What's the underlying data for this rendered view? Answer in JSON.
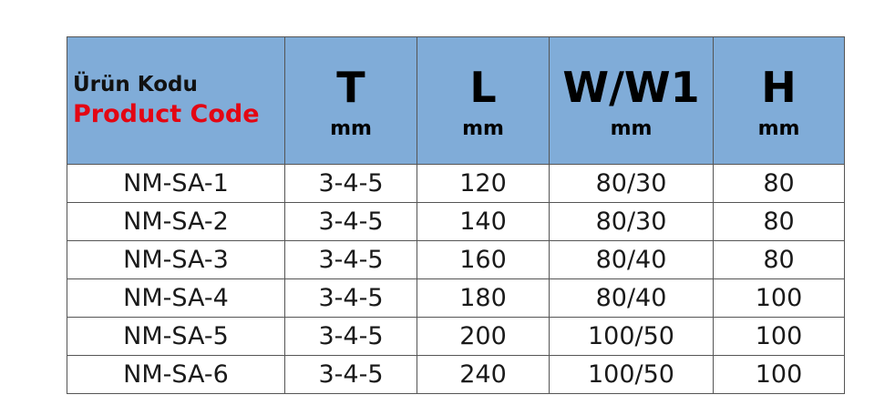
{
  "colors": {
    "header_bg": "#80acd8",
    "accent_red": "#e30613"
  },
  "header": {
    "code_tr": "Ürün Kodu",
    "code_en": "Product Code",
    "columns": [
      {
        "label": "T",
        "unit": "mm"
      },
      {
        "label": "L",
        "unit": "mm"
      },
      {
        "label": "W/W1",
        "unit": "mm"
      },
      {
        "label": "H",
        "unit": "mm"
      }
    ]
  },
  "rows": [
    [
      "NM-SA-1",
      "3-4-5",
      "120",
      "80/30",
      "80"
    ],
    [
      "NM-SA-2",
      "3-4-5",
      "140",
      "80/30",
      "80"
    ],
    [
      "NM-SA-3",
      "3-4-5",
      "160",
      "80/40",
      "80"
    ],
    [
      "NM-SA-4",
      "3-4-5",
      "180",
      "80/40",
      "100"
    ],
    [
      "NM-SA-5",
      "3-4-5",
      "200",
      "100/50",
      "100"
    ],
    [
      "NM-SA-6",
      "3-4-5",
      "240",
      "100/50",
      "100"
    ]
  ]
}
